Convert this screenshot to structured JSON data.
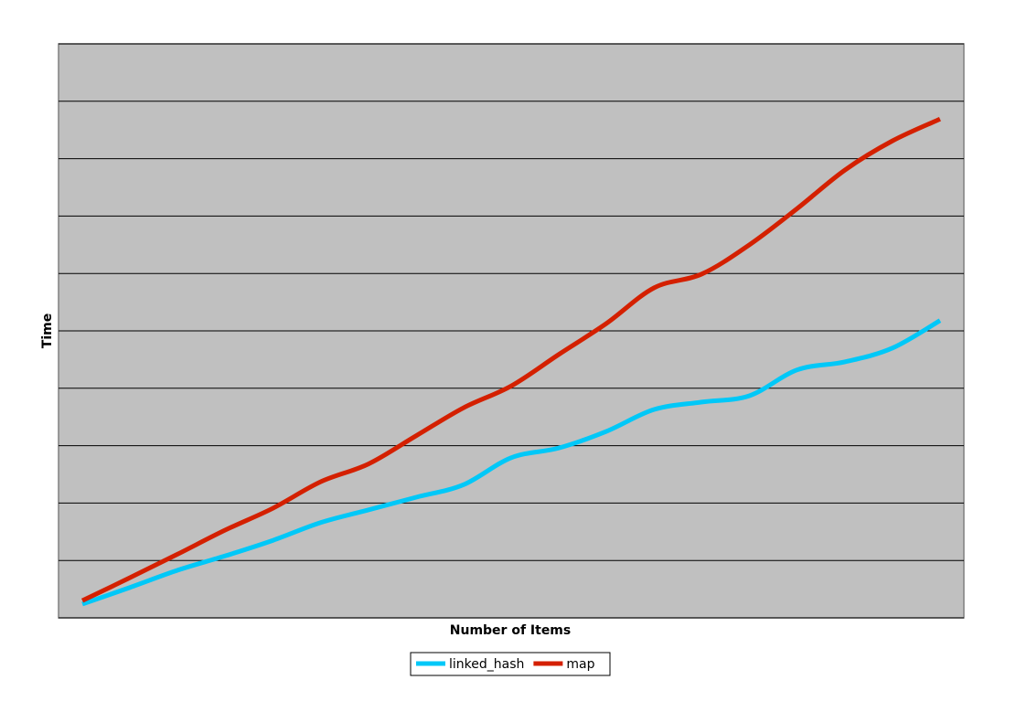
{
  "chart_data": {
    "type": "line",
    "x_label": "Number of Items",
    "y_label": "Time",
    "categories": [
      null,
      null,
      null,
      null,
      null,
      null,
      null,
      null,
      null,
      null,
      null,
      null,
      null,
      null,
      null,
      null,
      null,
      null,
      null
    ],
    "series": [
      {
        "name": "linked_hash",
        "color": "#00c8f8",
        "values": [
          0.24,
          0.53,
          0.83,
          1.08,
          1.35,
          1.66,
          1.88,
          2.1,
          2.32,
          2.79,
          2.96,
          3.25,
          3.63,
          3.76,
          3.87,
          4.32,
          4.46,
          4.7,
          5.18
        ]
      },
      {
        "name": "map",
        "color": "#d42000",
        "values": [
          0.3,
          0.7,
          1.11,
          1.53,
          1.91,
          2.37,
          2.68,
          3.17,
          3.66,
          4.04,
          4.59,
          5.13,
          5.75,
          5.99,
          6.5,
          7.13,
          7.8,
          8.31,
          8.69
        ]
      }
    ],
    "ylim": [
      0,
      10
    ],
    "yticks": [
      0,
      1,
      2,
      3,
      4,
      5,
      6,
      7,
      8,
      9,
      10
    ],
    "grid": true,
    "legend": "bottom"
  }
}
